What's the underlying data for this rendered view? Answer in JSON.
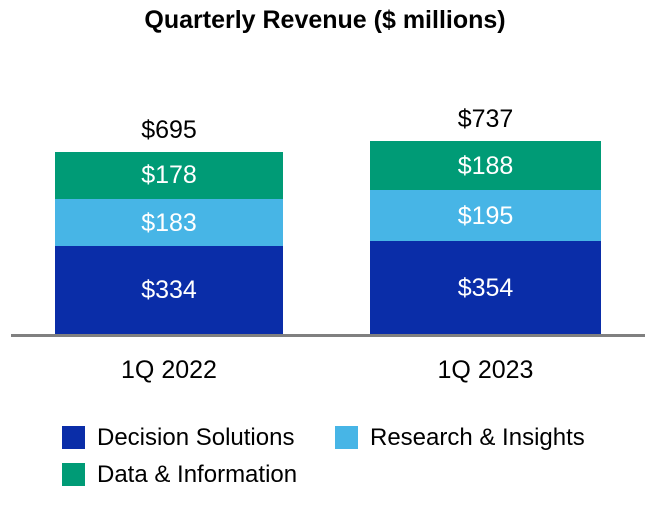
{
  "chart_data": {
    "type": "bar",
    "stacked": true,
    "title": "Quarterly Revenue ($ millions)",
    "categories": [
      "1Q 2022",
      "1Q 2023"
    ],
    "series": [
      {
        "name": "Decision Solutions",
        "color": "#0a2da8",
        "values": [
          334,
          354
        ]
      },
      {
        "name": "Research & Insights",
        "color": "#47b5e6",
        "values": [
          183,
          195
        ]
      },
      {
        "name": "Data & Information",
        "color": "#009b76",
        "values": [
          178,
          188
        ]
      }
    ],
    "totals": [
      695,
      737
    ],
    "value_prefix": "$",
    "ylim": [
      0,
      800
    ],
    "grid": false,
    "legend_position": "bottom-left",
    "legend_order": [
      "Decision Solutions",
      "Research & Insights",
      "Data & Information"
    ],
    "colors": {
      "axis_line": "#808080",
      "outside_label_text": "#000000",
      "inside_label_text": "#ffffff",
      "background": "#ffffff"
    }
  }
}
